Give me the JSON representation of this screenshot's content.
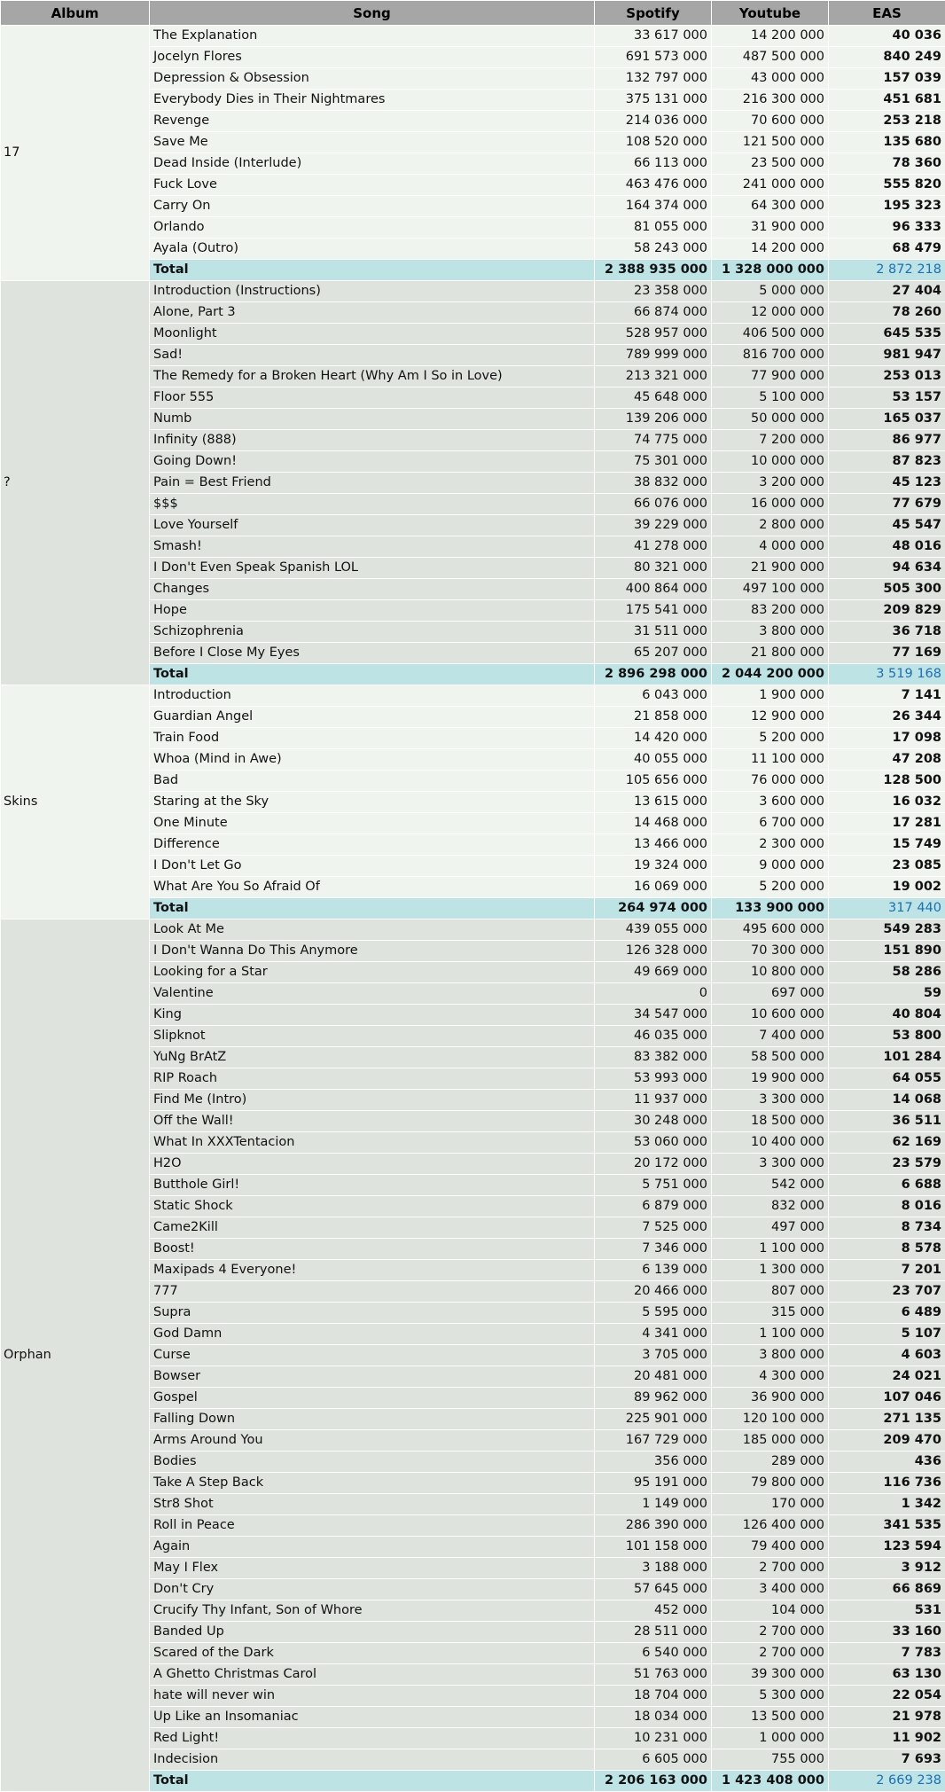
{
  "headers": {
    "album": "Album",
    "song": "Song",
    "spotify": "Spotify",
    "youtube": "Youtube",
    "eas": "EAS"
  },
  "albums": [
    {
      "name": "17",
      "songs": [
        [
          "The Explanation",
          "33 617 000",
          "14 200 000",
          "40 036"
        ],
        [
          "Jocelyn Flores",
          "691 573 000",
          "487 500 000",
          "840 249"
        ],
        [
          "Depression & Obsession",
          "132 797 000",
          "43 000 000",
          "157 039"
        ],
        [
          "Everybody Dies in Their Nightmares",
          "375 131 000",
          "216 300 000",
          "451 681"
        ],
        [
          "Revenge",
          "214 036 000",
          "70 600 000",
          "253 218"
        ],
        [
          "Save Me",
          "108 520 000",
          "121 500 000",
          "135 680"
        ],
        [
          "Dead Inside (Interlude)",
          "66 113 000",
          "23 500 000",
          "78 360"
        ],
        [
          "Fuck Love",
          "463 476 000",
          "241 000 000",
          "555 820"
        ],
        [
          "Carry On",
          "164 374 000",
          "64 300 000",
          "195 323"
        ],
        [
          "Orlando",
          "81 055 000",
          "31 900 000",
          "96 333"
        ],
        [
          "Ayala (Outro)",
          "58 243 000",
          "14 200 000",
          "68 479"
        ]
      ],
      "total": [
        "Total",
        "2 388 935 000",
        "1 328 000 000",
        "2 872 218"
      ]
    },
    {
      "name": "?",
      "songs": [
        [
          "Introduction (Instructions)",
          "23 358 000",
          "5 000 000",
          "27 404"
        ],
        [
          "Alone, Part 3",
          "66 874 000",
          "12 000 000",
          "78 260"
        ],
        [
          "Moonlight",
          "528 957 000",
          "406 500 000",
          "645 535"
        ],
        [
          "Sad!",
          "789 999 000",
          "816 700 000",
          "981 947"
        ],
        [
          "The Remedy for a Broken Heart (Why Am I So in Love)",
          "213 321 000",
          "77 900 000",
          "253 013"
        ],
        [
          "Floor 555",
          "45 648 000",
          "5 100 000",
          "53 157"
        ],
        [
          "Numb",
          "139 206 000",
          "50 000 000",
          "165 037"
        ],
        [
          "Infinity (888)",
          "74 775 000",
          "7 200 000",
          "86 977"
        ],
        [
          "Going Down!",
          "75 301 000",
          "10 000 000",
          "87 823"
        ],
        [
          "Pain = Best Friend",
          "38 832 000",
          "3 200 000",
          "45 123"
        ],
        [
          "$$$",
          "66 076 000",
          "16 000 000",
          "77 679"
        ],
        [
          "Love Yourself",
          "39 229 000",
          "2 800 000",
          "45 547"
        ],
        [
          "Smash!",
          "41 278 000",
          "4 000 000",
          "48 016"
        ],
        [
          "I Don't Even Speak Spanish LOL",
          "80 321 000",
          "21 900 000",
          "94 634"
        ],
        [
          "Changes",
          "400 864 000",
          "497 100 000",
          "505 300"
        ],
        [
          "Hope",
          "175 541 000",
          "83 200 000",
          "209 829"
        ],
        [
          "Schizophrenia",
          "31 511 000",
          "3 800 000",
          "36 718"
        ],
        [
          "Before I Close My Eyes",
          "65 207 000",
          "21 800 000",
          "77 169"
        ]
      ],
      "total": [
        "Total",
        "2 896 298 000",
        "2 044 200 000",
        "3 519 168"
      ]
    },
    {
      "name": "Skins",
      "songs": [
        [
          "Introduction",
          "6 043 000",
          "1 900 000",
          "7 141"
        ],
        [
          "Guardian Angel",
          "21 858 000",
          "12 900 000",
          "26 344"
        ],
        [
          "Train Food",
          "14 420 000",
          "5 200 000",
          "17 098"
        ],
        [
          "Whoa (Mind in Awe)",
          "40 055 000",
          "11 100 000",
          "47 208"
        ],
        [
          "Bad",
          "105 656 000",
          "76 000 000",
          "128 500"
        ],
        [
          "Staring at the Sky",
          "13 615 000",
          "3 600 000",
          "16 032"
        ],
        [
          "One Minute",
          "14 468 000",
          "6 700 000",
          "17 281"
        ],
        [
          "Difference",
          "13 466 000",
          "2 300 000",
          "15 749"
        ],
        [
          "I Don't Let Go",
          "19 324 000",
          "9 000 000",
          "23 085"
        ],
        [
          "What Are You So Afraid Of",
          "16 069 000",
          "5 200 000",
          "19 002"
        ]
      ],
      "total": [
        "Total",
        "264 974 000",
        "133 900 000",
        "317 440"
      ]
    },
    {
      "name": "Orphan",
      "songs": [
        [
          "Look At Me",
          "439 055 000",
          "495 600 000",
          "549 283"
        ],
        [
          "I Don't Wanna Do This Anymore",
          "126 328 000",
          "70 300 000",
          "151 890"
        ],
        [
          "Looking for a Star",
          "49 669 000",
          "10 800 000",
          "58 286"
        ],
        [
          "Valentine",
          "0",
          "697 000",
          "59"
        ],
        [
          "King",
          "34 547 000",
          "10 600 000",
          "40 804"
        ],
        [
          "Slipknot",
          "46 035 000",
          "7 400 000",
          "53 800"
        ],
        [
          "YuNg BrAtZ",
          "83 382 000",
          "58 500 000",
          "101 284"
        ],
        [
          "RIP Roach",
          "53 993 000",
          "19 900 000",
          "64 055"
        ],
        [
          "Find Me (Intro)",
          "11 937 000",
          "3 300 000",
          "14 068"
        ],
        [
          "Off the Wall!",
          "30 248 000",
          "18 500 000",
          "36 511"
        ],
        [
          "What In XXXTentacion",
          "53 060 000",
          "10 400 000",
          "62 169"
        ],
        [
          "H2O",
          "20 172 000",
          "3 300 000",
          "23 579"
        ],
        [
          "Butthole Girl!",
          "5 751 000",
          "542 000",
          "6 688"
        ],
        [
          "Static Shock",
          "6 879 000",
          "832 000",
          "8 016"
        ],
        [
          "Came2Kill",
          "7 525 000",
          "497 000",
          "8 734"
        ],
        [
          "Boost!",
          "7 346 000",
          "1 100 000",
          "8 578"
        ],
        [
          "Maxipads 4 Everyone!",
          "6 139 000",
          "1 300 000",
          "7 201"
        ],
        [
          "777",
          "20 466 000",
          "807 000",
          "23 707"
        ],
        [
          "Supra",
          "5 595 000",
          "315 000",
          "6 489"
        ],
        [
          "God Damn",
          "4 341 000",
          "1 100 000",
          "5 107"
        ],
        [
          "Curse",
          "3 705 000",
          "3 800 000",
          "4 603"
        ],
        [
          "Bowser",
          "20 481 000",
          "4 300 000",
          "24 021"
        ],
        [
          "Gospel",
          "89 962 000",
          "36 900 000",
          "107 046"
        ],
        [
          "Falling Down",
          "225 901 000",
          "120 100 000",
          "271 135"
        ],
        [
          "Arms Around You",
          "167 729 000",
          "185 000 000",
          "209 470"
        ],
        [
          "Bodies",
          "356 000",
          "289 000",
          "436"
        ],
        [
          "Take A Step Back",
          "95 191 000",
          "79 800 000",
          "116 736"
        ],
        [
          "Str8 Shot",
          "1 149 000",
          "170 000",
          "1 342"
        ],
        [
          "Roll in Peace",
          "286 390 000",
          "126 400 000",
          "341 535"
        ],
        [
          "Again",
          "101 158 000",
          "79 400 000",
          "123 594"
        ],
        [
          "May I Flex",
          "3 188 000",
          "2 700 000",
          "3 912"
        ],
        [
          "Don't Cry",
          "57 645 000",
          "3 400 000",
          "66 869"
        ],
        [
          "Crucify Thy Infant, Son of Whore",
          "452 000",
          "104 000",
          "531"
        ],
        [
          "Banded Up",
          "28 511 000",
          "2 700 000",
          "33 160"
        ],
        [
          "Scared of the Dark",
          "6 540 000",
          "2 700 000",
          "7 783"
        ],
        [
          "A Ghetto Christmas Carol",
          "51 763 000",
          "39 300 000",
          "63 130"
        ],
        [
          "hate will never win",
          "18 704 000",
          "5 300 000",
          "22 054"
        ],
        [
          "Up Like an Insomaniac",
          "18 034 000",
          "13 500 000",
          "21 978"
        ],
        [
          "Red Light!",
          "10 231 000",
          "1 000 000",
          "11 902"
        ],
        [
          "Indecision",
          "6 605 000",
          "755 000",
          "7 693"
        ]
      ],
      "total": [
        "Total",
        "2 206 163 000",
        "1 423 408 000",
        "2 669 238"
      ]
    }
  ]
}
